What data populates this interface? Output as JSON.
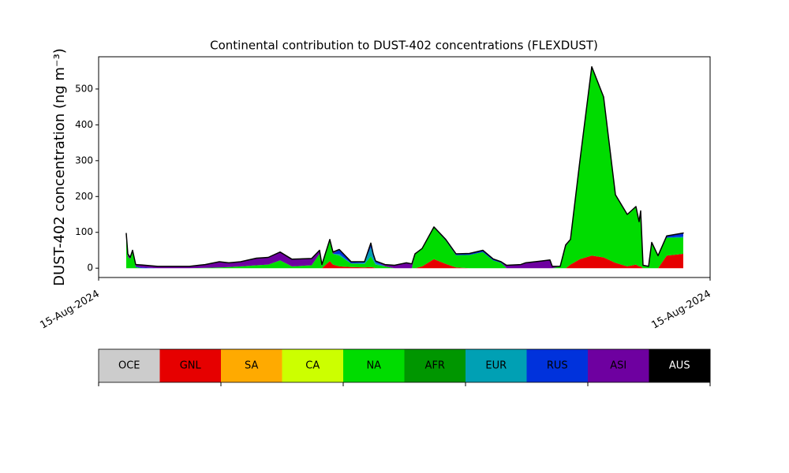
{
  "chart_data": {
    "type": "stacked-area",
    "title": "Continental contribution to DUST-402 concentrations (FLEXDUST)",
    "ylabel": "DUST-402 concentration (ng m⁻³)",
    "xlim": [
      0,
      775
    ],
    "xticks": [
      {
        "value": 0,
        "label": "15-Aug-2024"
      },
      {
        "value": 775,
        "label": "15-Aug-2024"
      }
    ],
    "ylim": [
      -26,
      590
    ],
    "yticks": [
      0,
      100,
      200,
      300,
      400,
      500
    ],
    "x": [
      35,
      37,
      40,
      43,
      47,
      55,
      75,
      115,
      135,
      153,
      165,
      180,
      200,
      215,
      230,
      245,
      270,
      280,
      283,
      293,
      297,
      305,
      320,
      337,
      345,
      348,
      351,
      363,
      375,
      390,
      397,
      401,
      410,
      425,
      440,
      453,
      470,
      487,
      500,
      510,
      517,
      535,
      541,
      561,
      572,
      575,
      585,
      592,
      598,
      610,
      625,
      640,
      655,
      670,
      681,
      685,
      687,
      690,
      697,
      701,
      709,
      720,
      741
    ],
    "series": [
      {
        "name": "OCE",
        "color": "#cccccc",
        "values": [
          0,
          0,
          0,
          0,
          0,
          0,
          0,
          0,
          0,
          0,
          0,
          0,
          0,
          0,
          0,
          0,
          0,
          0,
          0,
          0,
          0,
          0,
          0,
          0,
          0,
          0,
          0,
          0,
          0,
          0,
          0,
          0,
          0,
          0,
          0,
          0,
          0,
          0,
          0,
          0,
          0,
          0,
          0,
          0,
          0,
          0,
          0,
          0,
          0,
          0,
          0,
          0,
          0,
          0,
          0,
          0,
          0,
          0,
          0,
          0,
          0,
          0,
          0
        ]
      },
      {
        "name": "GNL",
        "color": "#e60000",
        "values": [
          0,
          0,
          0,
          0,
          0,
          0,
          0,
          0,
          0,
          0,
          0,
          0,
          0,
          0,
          0,
          0,
          0,
          0,
          0,
          20,
          10,
          5,
          3,
          2,
          3,
          2,
          0,
          0,
          0,
          0,
          0,
          0,
          5,
          25,
          12,
          2,
          0,
          0,
          0,
          0,
          0,
          0,
          0,
          0,
          0,
          0,
          0,
          0,
          10,
          25,
          35,
          30,
          15,
          5,
          10,
          5,
          5,
          0,
          0,
          0,
          0,
          35,
          40
        ]
      },
      {
        "name": "SA",
        "color": "#ffaa00",
        "values": [
          0,
          0,
          0,
          0,
          0,
          0,
          0,
          0,
          0,
          0,
          0,
          0,
          0,
          0,
          0,
          0,
          0,
          0,
          0,
          0,
          0,
          0,
          0,
          0,
          0,
          0,
          0,
          0,
          0,
          0,
          0,
          0,
          0,
          0,
          0,
          0,
          0,
          0,
          0,
          0,
          0,
          0,
          0,
          0,
          0,
          0,
          0,
          0,
          0,
          0,
          0,
          0,
          0,
          0,
          0,
          0,
          0,
          0,
          0,
          0,
          0,
          0,
          0
        ]
      },
      {
        "name": "CA",
        "color": "#ccff00",
        "values": [
          0,
          0,
          0,
          0,
          0,
          0,
          0,
          0,
          0,
          0,
          0,
          0,
          0,
          0,
          0,
          0,
          0,
          0,
          0,
          0,
          0,
          0,
          0,
          0,
          0,
          0,
          0,
          0,
          0,
          0,
          0,
          0,
          0,
          0,
          0,
          0,
          0,
          0,
          0,
          0,
          0,
          0,
          0,
          0,
          0,
          0,
          0,
          0,
          0,
          0,
          0,
          0,
          0,
          0,
          0,
          0,
          0,
          0,
          0,
          0,
          0,
          0,
          0
        ]
      },
      {
        "name": "NA",
        "color": "#00dc00",
        "values": [
          90,
          33,
          25,
          45,
          3,
          0,
          0,
          0,
          1,
          2,
          3,
          5,
          8,
          10,
          22,
          5,
          8,
          40,
          5,
          55,
          30,
          30,
          10,
          10,
          30,
          20,
          10,
          5,
          0,
          0,
          0,
          40,
          50,
          88,
          65,
          34,
          37,
          45,
          22,
          15,
          0,
          0,
          0,
          0,
          0,
          0,
          5,
          60,
          70,
          275,
          527,
          448,
          190,
          145,
          162,
          125,
          155,
          8,
          5,
          72,
          35,
          50,
          45
        ]
      },
      {
        "name": "AFR",
        "color": "#009600",
        "values": [
          0,
          0,
          0,
          0,
          0,
          0,
          0,
          0,
          0,
          0,
          0,
          0,
          0,
          0,
          0,
          0,
          0,
          0,
          0,
          0,
          0,
          0,
          0,
          0,
          0,
          0,
          0,
          0,
          0,
          0,
          0,
          0,
          0,
          0,
          0,
          0,
          0,
          0,
          0,
          0,
          0,
          0,
          0,
          0,
          0,
          0,
          0,
          0,
          0,
          0,
          0,
          0,
          0,
          0,
          0,
          0,
          0,
          0,
          0,
          0,
          0,
          0,
          0
        ]
      },
      {
        "name": "EUR",
        "color": "#00a0b4",
        "values": [
          0,
          0,
          0,
          0,
          0,
          0,
          0,
          0,
          0,
          0,
          0,
          0,
          0,
          0,
          0,
          0,
          0,
          0,
          0,
          0,
          0,
          5,
          0,
          3,
          25,
          10,
          5,
          0,
          0,
          0,
          0,
          0,
          0,
          0,
          0,
          0,
          0,
          0,
          0,
          0,
          0,
          0,
          0,
          0,
          0,
          0,
          0,
          0,
          0,
          0,
          0,
          0,
          0,
          0,
          0,
          0,
          0,
          0,
          0,
          0,
          0,
          0,
          3
        ]
      },
      {
        "name": "RUS",
        "color": "#0032dc",
        "values": [
          0,
          0,
          0,
          0,
          2,
          2,
          0,
          0,
          0,
          0,
          0,
          0,
          0,
          0,
          0,
          0,
          0,
          0,
          0,
          0,
          0,
          12,
          5,
          3,
          12,
          8,
          5,
          0,
          0,
          0,
          0,
          0,
          0,
          2,
          3,
          4,
          4,
          5,
          4,
          3,
          0,
          0,
          0,
          0,
          0,
          0,
          0,
          0,
          0,
          0,
          0,
          0,
          0,
          0,
          0,
          0,
          0,
          0,
          0,
          0,
          0,
          5,
          10
        ]
      },
      {
        "name": "ASI",
        "color": "#6e00a0",
        "values": [
          7,
          7,
          5,
          5,
          5,
          7,
          5,
          5,
          9,
          16,
          12,
          13,
          20,
          20,
          23,
          20,
          19,
          10,
          5,
          5,
          5,
          0,
          0,
          0,
          0,
          0,
          0,
          5,
          8,
          15,
          12,
          0,
          0,
          0,
          0,
          0,
          0,
          0,
          0,
          0,
          8,
          10,
          15,
          20,
          23,
          5,
          0,
          5,
          0,
          0,
          0,
          0,
          0,
          0,
          0,
          0,
          0,
          0,
          0,
          0,
          0,
          0,
          0
        ]
      },
      {
        "name": "AUS",
        "color": "#000000",
        "values": [
          0,
          0,
          0,
          0,
          0,
          0,
          0,
          0,
          0,
          0,
          0,
          0,
          0,
          0,
          0,
          0,
          0,
          0,
          0,
          0,
          0,
          0,
          0,
          0,
          0,
          0,
          0,
          0,
          0,
          0,
          0,
          0,
          0,
          0,
          0,
          0,
          0,
          0,
          0,
          0,
          0,
          0,
          0,
          0,
          0,
          0,
          0,
          0,
          0,
          0,
          0,
          0,
          0,
          0,
          0,
          0,
          0,
          0,
          0,
          0,
          0,
          0,
          0
        ]
      }
    ]
  }
}
